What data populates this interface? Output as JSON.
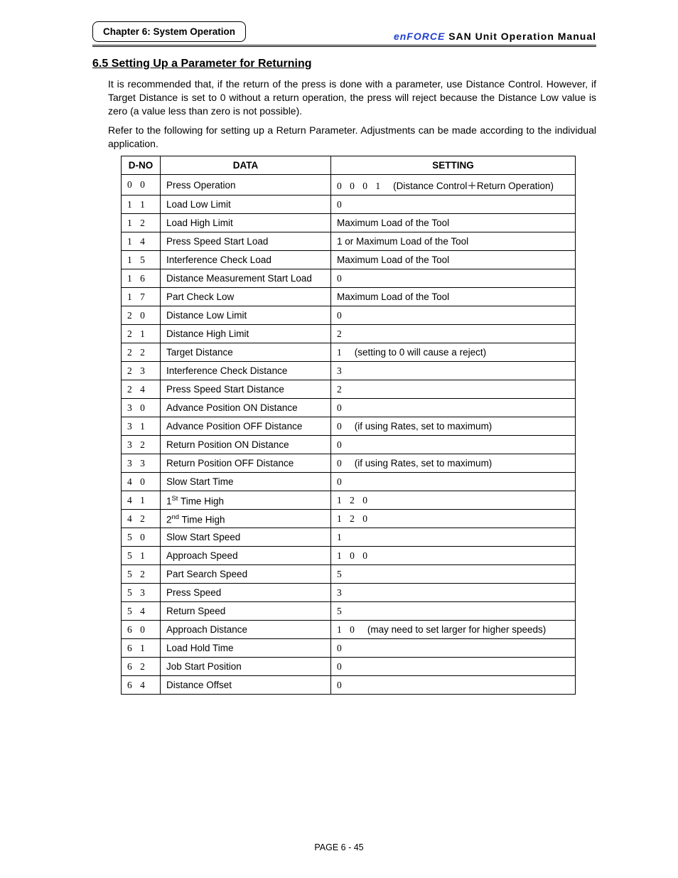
{
  "header": {
    "chapter_label": "Chapter 6: System Operation",
    "brand": "enFORCE",
    "manual_title": "SAN  Unit  Operation  Manual"
  },
  "section": {
    "number_title": "6.5   Setting Up a Parameter for Returning",
    "intro_p1": "It is recommended that, if the return of the press is done with a parameter, use Distance Control. However, if Target Distance is set to 0 without a return operation, the press will reject because the Distance Low value is zero (a value less than zero is not possible).",
    "intro_p2": "Refer to the following for setting up a Return Parameter. Adjustments can be made according to the individual application."
  },
  "table": {
    "headers": {
      "dno": "D-NO",
      "data": "DATA",
      "setting": "SETTING"
    },
    "rows": [
      {
        "dno": "0 0",
        "data": "Press Operation",
        "setting_num": "0 0 0 1",
        "setting_note": "(Distance Control＋Return Operation)"
      },
      {
        "dno": "1 1",
        "data": "Load Low Limit",
        "setting_num": "0",
        "setting_note": ""
      },
      {
        "dno": "1 2",
        "data": "Load High Limit",
        "setting_num": "",
        "setting_note": "Maximum Load of the Tool"
      },
      {
        "dno": "1 4",
        "data": "Press Speed Start Load",
        "setting_num": "",
        "setting_note": "1 or Maximum Load of the Tool"
      },
      {
        "dno": "1 5",
        "data": "Interference Check Load",
        "setting_num": "",
        "setting_note": "Maximum Load of the Tool"
      },
      {
        "dno": "1 6",
        "data": "Distance Measurement Start Load",
        "setting_num": "0",
        "setting_note": ""
      },
      {
        "dno": "1 7",
        "data": "Part Check Low",
        "setting_num": "",
        "setting_note": "Maximum Load of the Tool"
      },
      {
        "dno": "2 0",
        "data": "Distance Low Limit",
        "setting_num": "0",
        "setting_note": ""
      },
      {
        "dno": "2 1",
        "data": "Distance High Limit",
        "setting_num": "2",
        "setting_note": ""
      },
      {
        "dno": "2 2",
        "data": "Target Distance",
        "setting_num": "1",
        "setting_note": "(setting to 0 will cause a reject)"
      },
      {
        "dno": "2 3",
        "data": "Interference Check Distance",
        "setting_num": "3",
        "setting_note": ""
      },
      {
        "dno": "2 4",
        "data": "Press Speed Start Distance",
        "setting_num": "2",
        "setting_note": ""
      },
      {
        "dno": "3 0",
        "data": "Advance Position ON Distance",
        "setting_num": "0",
        "setting_note": ""
      },
      {
        "dno": "3 1",
        "data": "Advance Position OFF Distance",
        "setting_num": "0",
        "setting_note": "(if using Rates, set to maximum)"
      },
      {
        "dno": "3 2",
        "data": "Return Position ON Distance",
        "setting_num": "0",
        "setting_note": ""
      },
      {
        "dno": "3 3",
        "data": "Return Position OFF Distance",
        "setting_num": "0",
        "setting_note": "(if using Rates, set to maximum)"
      },
      {
        "dno": "4 0",
        "data": "Slow Start Time",
        "setting_num": "0",
        "setting_note": ""
      },
      {
        "dno": "4 1",
        "data_html": "1<span class='sup'>St</span> Time High",
        "setting_num": "1 2 0",
        "setting_note": ""
      },
      {
        "dno": "4 2",
        "data_html": "2<span class='sup'>nd</span> Time High",
        "setting_num": "1 2 0",
        "setting_note": ""
      },
      {
        "dno": "5 0",
        "data": "Slow Start Speed",
        "setting_num": "1",
        "setting_note": ""
      },
      {
        "dno": "5 1",
        "data": "Approach Speed",
        "setting_num": "1 0 0",
        "setting_note": ""
      },
      {
        "dno": "5 2",
        "data": "Part Search Speed",
        "setting_num": "5",
        "setting_note": ""
      },
      {
        "dno": "5 3",
        "data": "Press Speed",
        "setting_num": "3",
        "setting_note": ""
      },
      {
        "dno": "5 4",
        "data": "Return Speed",
        "setting_num": "5",
        "setting_note": ""
      },
      {
        "dno": "6 0",
        "data": "Approach Distance",
        "setting_num": "1 0",
        "setting_note": "(may need to set larger for higher speeds)"
      },
      {
        "dno": "6 1",
        "data": "Load Hold Time",
        "setting_num": "0",
        "setting_note": ""
      },
      {
        "dno": "6 2",
        "data": "Job Start Position",
        "setting_num": "0",
        "setting_note": ""
      },
      {
        "dno": "6 4",
        "data": "Distance Offset",
        "setting_num": "0",
        "setting_note": ""
      }
    ]
  },
  "footer": {
    "page_label": "PAGE 6 - 45"
  }
}
